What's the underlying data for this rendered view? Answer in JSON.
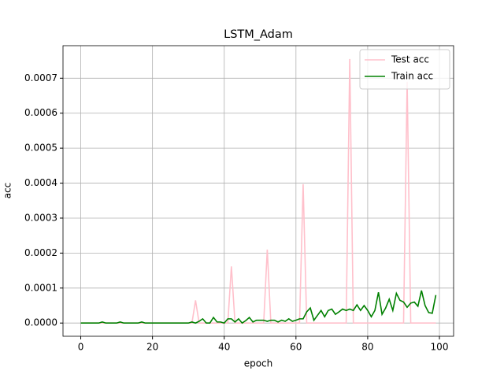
{
  "chart_data": {
    "type": "line",
    "title": "LSTM_Adam",
    "x_label": "epoch",
    "y_label": "acc",
    "x": [
      0,
      1,
      2,
      3,
      4,
      5,
      6,
      7,
      8,
      9,
      10,
      11,
      12,
      13,
      14,
      15,
      16,
      17,
      18,
      19,
      20,
      21,
      22,
      23,
      24,
      25,
      26,
      27,
      28,
      29,
      30,
      31,
      32,
      33,
      34,
      35,
      36,
      37,
      38,
      39,
      40,
      41,
      42,
      43,
      44,
      45,
      46,
      47,
      48,
      49,
      50,
      51,
      52,
      53,
      54,
      55,
      56,
      57,
      58,
      59,
      60,
      61,
      62,
      63,
      64,
      65,
      66,
      67,
      68,
      69,
      70,
      71,
      72,
      73,
      74,
      75,
      76,
      77,
      78,
      79,
      80,
      81,
      82,
      83,
      84,
      85,
      86,
      87,
      88,
      89,
      90,
      91,
      92,
      93,
      94,
      95,
      96,
      97,
      98,
      99
    ],
    "series": [
      {
        "name": "Test acc",
        "color": "pink",
        "values": [
          0,
          0,
          0,
          0,
          0,
          0,
          0,
          0,
          0,
          0,
          0,
          0,
          0,
          0,
          0,
          0,
          0,
          0,
          0,
          0,
          0,
          0,
          0,
          0,
          0,
          0,
          0,
          0,
          0,
          0,
          0,
          0,
          6.5e-05,
          0,
          0,
          0,
          0,
          0,
          0,
          0,
          0,
          0,
          0.000162,
          0,
          0,
          0,
          0,
          0,
          0,
          0,
          0,
          0,
          0.00021,
          0,
          0,
          0,
          0,
          0,
          0,
          0,
          0,
          0,
          0.000397,
          0,
          0,
          0,
          0,
          0,
          0,
          0,
          0,
          0,
          0,
          0,
          0,
          0.000755,
          0,
          0,
          0,
          0,
          0,
          0,
          0,
          0,
          0,
          0,
          0,
          0,
          0,
          0,
          0,
          0.00069,
          0,
          0,
          0,
          0,
          0,
          0,
          0,
          0
        ]
      },
      {
        "name": "Train acc",
        "color": "green",
        "values": [
          0,
          0,
          0,
          0,
          0,
          0,
          3e-06,
          0,
          0,
          0,
          0,
          3e-06,
          0,
          0,
          0,
          0,
          0,
          3e-06,
          0,
          0,
          0,
          0,
          0,
          0,
          0,
          0,
          0,
          0,
          0,
          0,
          0,
          3e-06,
          0,
          5e-06,
          1.2e-05,
          0,
          0,
          1.6e-05,
          3e-06,
          3e-06,
          0,
          1.2e-05,
          1.2e-05,
          3e-06,
          1.2e-05,
          0,
          7e-06,
          1.6e-05,
          3e-06,
          8e-06,
          8e-06,
          8e-06,
          5e-06,
          8e-06,
          8e-06,
          3e-06,
          8e-06,
          5e-06,
          1.2e-05,
          5e-06,
          8e-06,
          1.2e-05,
          1.2e-05,
          3.2e-05,
          4.3e-05,
          8e-06,
          2.2e-05,
          3.6e-05,
          1.8e-05,
          3.6e-05,
          4e-05,
          2.5e-05,
          3.2e-05,
          4e-05,
          3.6e-05,
          4e-05,
          3.6e-05,
          5.2e-05,
          3.6e-05,
          5e-05,
          3.6e-05,
          1.8e-05,
          3.6e-05,
          8.8e-05,
          2.5e-05,
          4.3e-05,
          6.8e-05,
          3.6e-05,
          8.5e-05,
          6.5e-05,
          6e-05,
          4.5e-05,
          5.7e-05,
          6e-05,
          4.8e-05,
          9.3e-05,
          5e-05,
          3e-05,
          2.8e-05,
          8e-05
        ]
      }
    ],
    "xlim": [
      -4.95,
      103.95
    ],
    "ylim": [
      -3.78e-05,
      0.000793
    ],
    "xticks": [
      0,
      20,
      40,
      60,
      80,
      100
    ],
    "yticks": [
      {
        "value": 0,
        "label": "0.0000"
      },
      {
        "value": 0.0001,
        "label": "0.0001"
      },
      {
        "value": 0.0002,
        "label": "0.0002"
      },
      {
        "value": 0.0003,
        "label": "0.0003"
      },
      {
        "value": 0.0004,
        "label": "0.0004"
      },
      {
        "value": 0.0005,
        "label": "0.0005"
      },
      {
        "value": 0.0006,
        "label": "0.0006"
      },
      {
        "value": 0.0007,
        "label": "0.0007"
      }
    ],
    "grid": true,
    "legend": "upper right"
  }
}
